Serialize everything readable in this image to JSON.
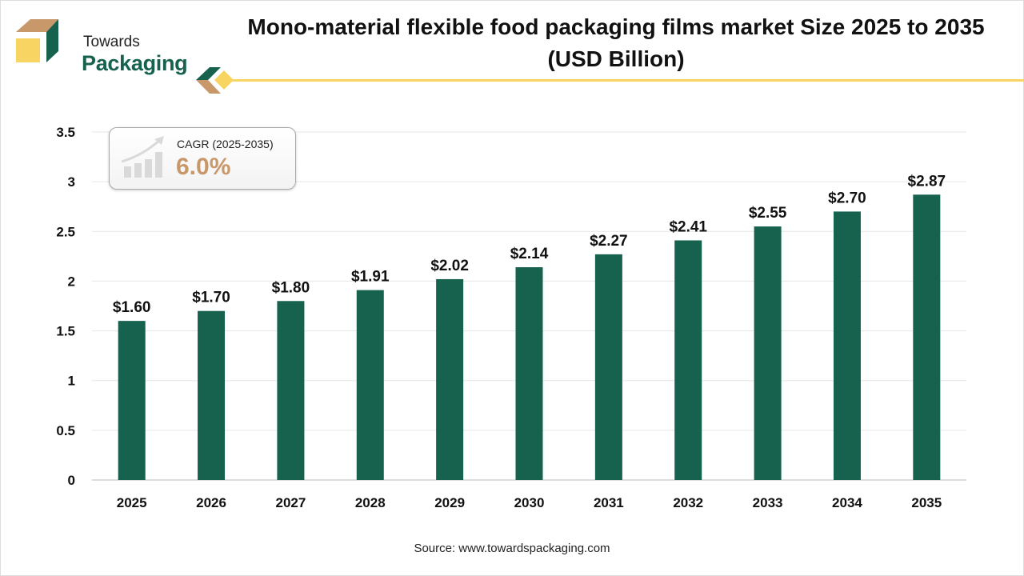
{
  "brand": {
    "line1": "Towards",
    "line2": "Packaging"
  },
  "colors": {
    "bar": "#17614f",
    "accent": "#f8d563",
    "tan": "#c8976a",
    "grid": "#e6e6e6"
  },
  "cagr": {
    "label": "CAGR (2025-2035)",
    "value": "6.0%",
    "icon": "growth-chart-icon"
  },
  "source": "Source: www.towardspackaging.com",
  "chart_data": {
    "type": "bar",
    "title": "Mono-material flexible food packaging films market Size 2025 to 2035 (USD Billion)",
    "categories": [
      "2025",
      "2026",
      "2027",
      "2028",
      "2029",
      "2030",
      "2031",
      "2032",
      "2033",
      "2034",
      "2035"
    ],
    "values": [
      1.6,
      1.7,
      1.8,
      1.91,
      2.02,
      2.14,
      2.27,
      2.41,
      2.55,
      2.7,
      2.87
    ],
    "data_labels": [
      "$1.60",
      "$1.70",
      "$1.80",
      "$1.91",
      "$2.02",
      "$2.14",
      "$2.27",
      "$2.41",
      "$2.55",
      "$2.70",
      "$2.87"
    ],
    "yticks": [
      "0",
      "0.5",
      "1",
      "1.5",
      "2",
      "2.5",
      "3",
      "3.5"
    ],
    "ylim": [
      0,
      3.5
    ],
    "grid": true,
    "xlabel": "",
    "ylabel": ""
  }
}
